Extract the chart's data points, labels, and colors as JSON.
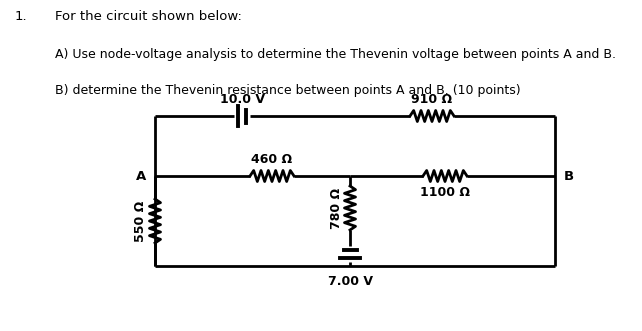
{
  "title_num": "1.",
  "title_line1": "For the circuit shown below:",
  "title_line2": "A) Use node-voltage analysis to determine the Thevenin voltage between points A and B.",
  "title_line3": "B) determine the Thevenin resistance between points A and B. (10 points)",
  "v1_label": "10.0 V",
  "v2_label": "7.00 V",
  "r1_label": "910 Ω",
  "r2_label": "460 Ω",
  "r3_label": "550 Ω",
  "r4_label": "780 Ω",
  "r5_label": "1100 Ω",
  "node_a": "A",
  "node_b": "B",
  "line_color": "black",
  "lw": 2.0,
  "background": "#ffffff"
}
